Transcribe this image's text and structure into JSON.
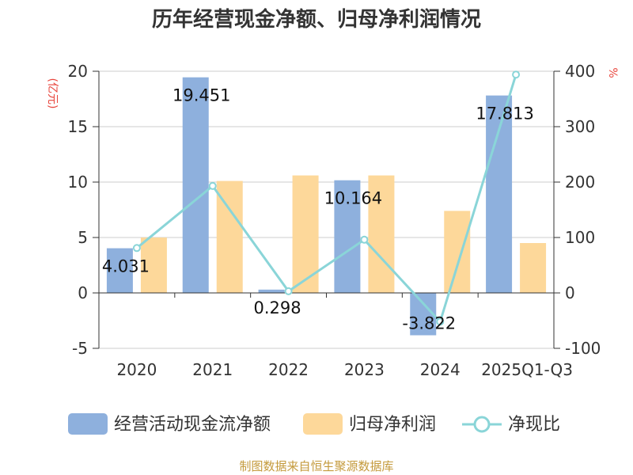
{
  "chart_data": {
    "type": "bar",
    "title": "历年经营现金净额、归母净利润情况",
    "categories": [
      "2020",
      "2021",
      "2022",
      "2023",
      "2024",
      "2025Q1-Q3"
    ],
    "series": [
      {
        "name": "经营活动现金流净额",
        "axis": "left",
        "type": "bar",
        "values": [
          4.031,
          19.451,
          0.298,
          10.164,
          -3.822,
          17.813
        ],
        "labels": [
          "4.031",
          "19.451",
          "0.298",
          "10.164",
          "-3.822",
          "17.813"
        ]
      },
      {
        "name": "归母净利润",
        "axis": "left",
        "type": "bar",
        "values": [
          5.0,
          10.1,
          10.6,
          10.6,
          7.4,
          4.5
        ]
      },
      {
        "name": "净现比",
        "axis": "right",
        "type": "line",
        "values": [
          81,
          193,
          3,
          96,
          -52,
          394
        ]
      }
    ],
    "ylabel": "(亿元)",
    "y2label": "%",
    "ylim": [
      -5,
      20
    ],
    "yticks": [
      -5,
      0,
      5,
      10,
      15,
      20
    ],
    "y2lim": [
      -100,
      400
    ],
    "y2ticks": [
      -100,
      0,
      100,
      200,
      300,
      400
    ],
    "legend_position": "bottom",
    "colors": {
      "bar1": "#8eb0dd",
      "bar2": "#fdd89a",
      "line": "#8ad5d8",
      "axis_unit": "#e8453c",
      "source": "#c49a3c"
    },
    "source": "制图数据来自恒生聚源数据库"
  }
}
